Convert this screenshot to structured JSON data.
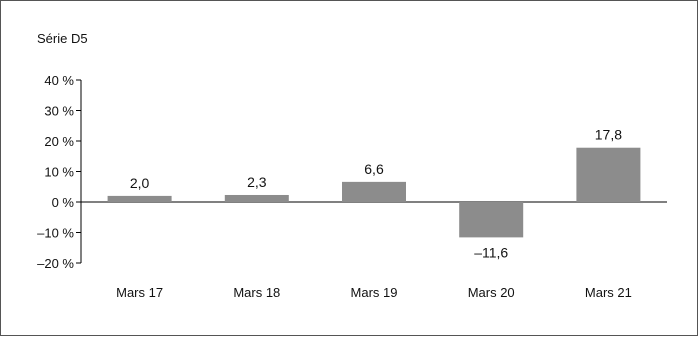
{
  "chart_data": {
    "type": "bar",
    "series_label": "Série D5",
    "categories": [
      "Mars 17",
      "Mars 18",
      "Mars 19",
      "Mars 20",
      "Mars 21"
    ],
    "values": [
      2.0,
      2.3,
      6.6,
      -11.6,
      17.8
    ],
    "value_labels": [
      "2,0",
      "2,3",
      "6,6",
      "–11,6",
      "17,8"
    ],
    "y_ticks": [
      40,
      30,
      20,
      10,
      0,
      -10,
      -20
    ],
    "y_tick_labels": [
      "40 %",
      "30 %",
      "20 %",
      "10 %",
      "0 %",
      "–10 %",
      "–20 %"
    ],
    "ylim": [
      -20,
      40
    ],
    "bar_color": "#8c8c8c",
    "grid": false
  }
}
